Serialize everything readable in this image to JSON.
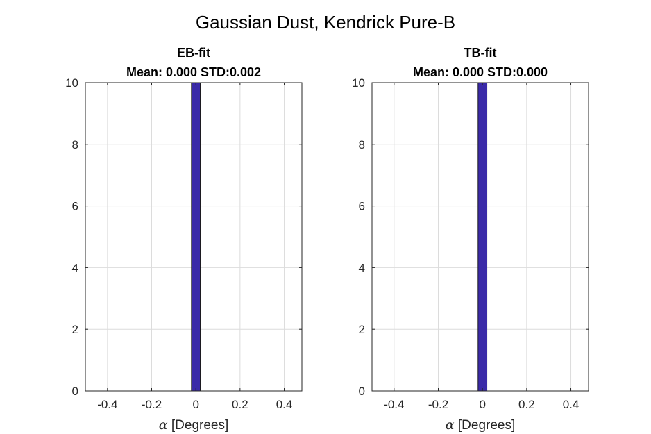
{
  "figure": {
    "title": "Gaussian Dust, Kendrick Pure-B"
  },
  "chart_data": [
    {
      "type": "bar",
      "title_line1": "EB-fit",
      "title_line2": "Mean: 0.000 STD:0.002",
      "xlabel_symbol": "α",
      "xlabel_text": " [Degrees]",
      "xlim": [
        -0.5,
        0.48
      ],
      "ylim": [
        0,
        10
      ],
      "xticks": [
        "-0.4",
        "-0.2",
        "0",
        "0.2",
        "0.4"
      ],
      "yticks": [
        "0",
        "2",
        "4",
        "6",
        "8",
        "10"
      ],
      "grid": true,
      "bars": [
        {
          "x0": -0.02,
          "x1": 0.02,
          "value": 10
        }
      ],
      "bar_color": "#3a2aa8"
    },
    {
      "type": "bar",
      "title_line1": "TB-fit",
      "title_line2": "Mean: 0.000 STD:0.000",
      "xlabel_symbol": "α",
      "xlabel_text": " [Degrees]",
      "xlim": [
        -0.5,
        0.48
      ],
      "ylim": [
        0,
        10
      ],
      "xticks": [
        "-0.4",
        "-0.2",
        "0",
        "0.2",
        "0.4"
      ],
      "yticks": [
        "0",
        "2",
        "4",
        "6",
        "8",
        "10"
      ],
      "grid": true,
      "bars": [
        {
          "x0": -0.02,
          "x1": 0.02,
          "value": 10
        }
      ],
      "bar_color": "#3a2aa8"
    }
  ]
}
